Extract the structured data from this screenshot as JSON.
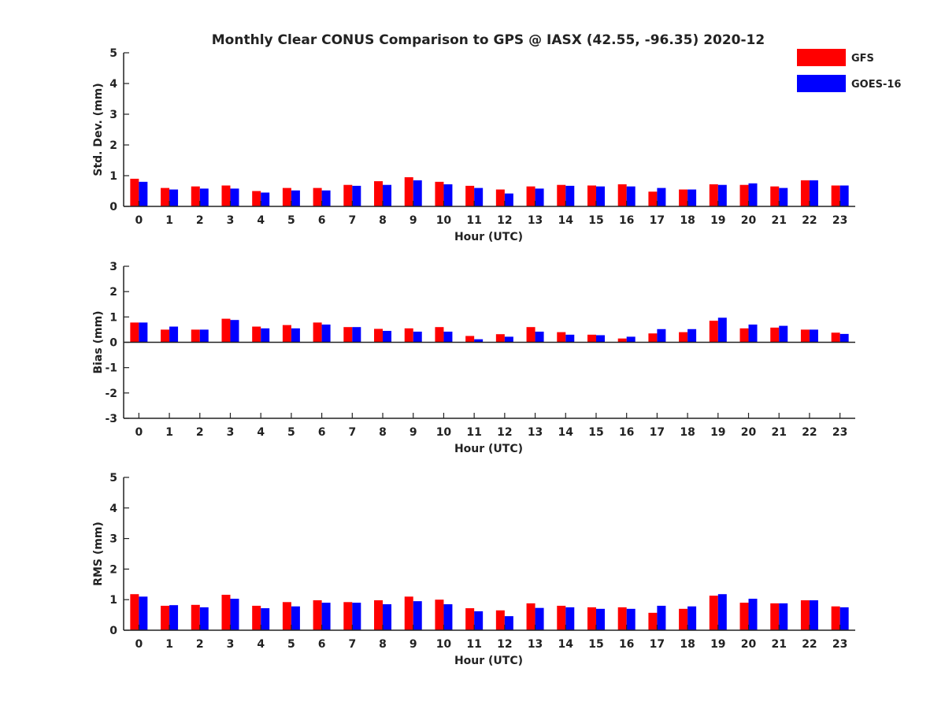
{
  "chart_data": {
    "type": "bar",
    "title": "Monthly Clear CONUS Comparison to GPS @ IASX (42.55, -96.35) 2020-12",
    "legend": {
      "placement": "top-right",
      "entries": [
        {
          "name": "GFS",
          "color": "#ff0000"
        },
        {
          "name": "GOES-16",
          "color": "#0000ff"
        }
      ]
    },
    "categories": [
      "0",
      "1",
      "2",
      "3",
      "4",
      "5",
      "6",
      "7",
      "8",
      "9",
      "10",
      "11",
      "12",
      "13",
      "14",
      "15",
      "16",
      "17",
      "18",
      "19",
      "20",
      "21",
      "22",
      "23"
    ],
    "panels": [
      {
        "ylabel": "Std. Dev. (mm)",
        "xlabel": "Hour (UTC)",
        "ylim": [
          0,
          5
        ],
        "yticks": [
          "0",
          "1",
          "2",
          "3",
          "4",
          "5"
        ],
        "series": [
          {
            "name": "GFS",
            "color": "#ff0000",
            "values": [
              0.9,
              0.6,
              0.65,
              0.68,
              0.5,
              0.6,
              0.6,
              0.7,
              0.82,
              0.95,
              0.8,
              0.67,
              0.55,
              0.65,
              0.7,
              0.68,
              0.72,
              0.48,
              0.55,
              0.72,
              0.7,
              0.65,
              0.85,
              0.68
            ]
          },
          {
            "name": "GOES-16",
            "color": "#0000ff",
            "values": [
              0.8,
              0.55,
              0.58,
              0.58,
              0.45,
              0.52,
              0.52,
              0.67,
              0.7,
              0.85,
              0.72,
              0.6,
              0.42,
              0.58,
              0.67,
              0.65,
              0.65,
              0.6,
              0.55,
              0.7,
              0.75,
              0.6,
              0.85,
              0.68
            ]
          }
        ]
      },
      {
        "ylabel": "Bias (mm)",
        "xlabel": "Hour (UTC)",
        "ylim": [
          -3,
          3
        ],
        "yticks": [
          "-3",
          "-2",
          "-1",
          "0",
          "1",
          "2",
          "3"
        ],
        "series": [
          {
            "name": "GFS",
            "color": "#ff0000",
            "values": [
              0.78,
              0.5,
              0.5,
              0.93,
              0.62,
              0.68,
              0.78,
              0.6,
              0.53,
              0.55,
              0.6,
              0.25,
              0.32,
              0.6,
              0.4,
              0.3,
              0.15,
              0.35,
              0.4,
              0.85,
              0.55,
              0.58,
              0.5,
              0.38
            ]
          },
          {
            "name": "GOES-16",
            "color": "#0000ff",
            "values": [
              0.78,
              0.62,
              0.5,
              0.88,
              0.55,
              0.55,
              0.7,
              0.6,
              0.45,
              0.42,
              0.42,
              0.12,
              0.22,
              0.42,
              0.3,
              0.28,
              0.22,
              0.52,
              0.52,
              0.97,
              0.7,
              0.65,
              0.5,
              0.33
            ]
          }
        ]
      },
      {
        "ylabel": "RMS (mm)",
        "xlabel": "Hour (UTC)",
        "ylim": [
          0,
          5
        ],
        "yticks": [
          "0",
          "1",
          "2",
          "3",
          "4",
          "5"
        ],
        "series": [
          {
            "name": "GFS",
            "color": "#ff0000",
            "values": [
              1.18,
              0.8,
              0.83,
              1.16,
              0.8,
              0.92,
              0.98,
              0.92,
              0.98,
              1.1,
              1.0,
              0.72,
              0.65,
              0.88,
              0.8,
              0.75,
              0.75,
              0.57,
              0.7,
              1.13,
              0.9,
              0.88,
              0.98,
              0.78
            ]
          },
          {
            "name": "GOES-16",
            "color": "#0000ff",
            "values": [
              1.1,
              0.82,
              0.75,
              1.03,
              0.72,
              0.78,
              0.9,
              0.9,
              0.85,
              0.95,
              0.85,
              0.62,
              0.46,
              0.73,
              0.75,
              0.7,
              0.7,
              0.8,
              0.78,
              1.18,
              1.03,
              0.88,
              0.98,
              0.75
            ]
          }
        ]
      }
    ]
  }
}
